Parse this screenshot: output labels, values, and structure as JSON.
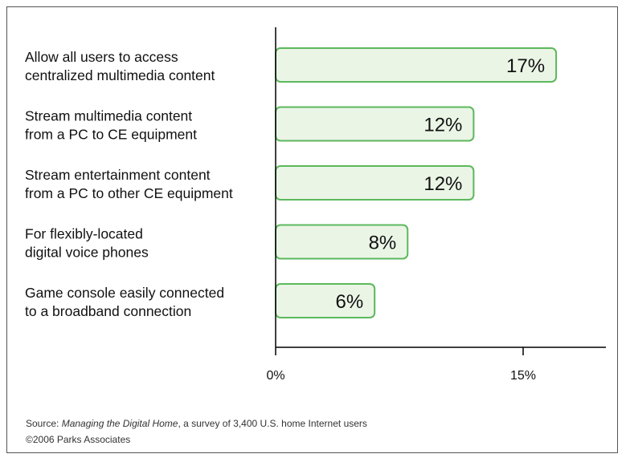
{
  "chart_data": {
    "type": "bar",
    "orientation": "horizontal",
    "categories": [
      [
        "Allow all users to access",
        "centralized multimedia content"
      ],
      [
        "Stream multimedia content",
        "from a PC to CE equipment"
      ],
      [
        "Stream entertainment content",
        "from a PC to other CE equipment"
      ],
      [
        "For flexibly-located",
        "digital voice phones"
      ],
      [
        "Game console easily connected",
        "to a broadband connection"
      ]
    ],
    "values": [
      17,
      12,
      12,
      8,
      6
    ],
    "data_labels": [
      "17%",
      "12%",
      "12%",
      "8%",
      "6%"
    ],
    "x_ticks": [
      {
        "value": 0,
        "label": "0%"
      },
      {
        "value": 15,
        "label": "15%"
      }
    ],
    "xlim": [
      0,
      15
    ],
    "grid": false,
    "bar_fill": "#eaf5e6",
    "bar_stroke": "#5cb85c"
  },
  "source": {
    "prefix": "Source: ",
    "title": "Managing the Digital Home",
    "suffix": ", a survey of 3,400 U.S. home Internet users",
    "copyright": "©2006 Parks Associates"
  }
}
